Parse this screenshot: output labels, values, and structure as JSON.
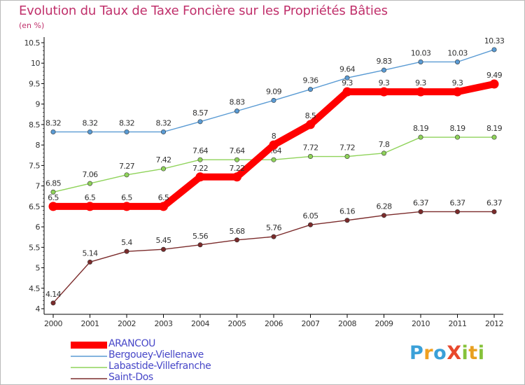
{
  "chart_data": {
    "type": "line",
    "title": "Evolution du Taux de Taxe Foncière sur les Propriétés Bâties",
    "subtitle": "(en %)",
    "xlabel": "",
    "ylabel": "",
    "categories": [
      "2000",
      "2001",
      "2002",
      "2003",
      "2004",
      "2005",
      "2006",
      "2007",
      "2008",
      "2009",
      "2010",
      "2011",
      "2012"
    ],
    "ylim": [
      4,
      10.5
    ],
    "yticks": [
      "4",
      "4.5",
      "5",
      "5.5",
      "6",
      "6.5",
      "7",
      "7.5",
      "8",
      "8.5",
      "9",
      "9.5",
      "10",
      "10.5"
    ],
    "grid": false,
    "legend_position": "bottom-left",
    "series": [
      {
        "name": "Bergouey-Viellenave",
        "color": "#5a9bd4",
        "values": [
          8.32,
          8.32,
          8.32,
          8.32,
          8.57,
          8.83,
          9.09,
          9.36,
          9.64,
          9.83,
          10.03,
          10.03,
          10.33
        ],
        "labels": [
          "8.32",
          "8.32",
          "8.32",
          "8.32",
          "8.57",
          "8.83",
          "9.09",
          "9.36",
          "9.64",
          "9.83",
          "10.03",
          "10.03",
          "10.33"
        ]
      },
      {
        "name": "Labastide-Villefranche",
        "color": "#8fd35a",
        "values": [
          6.85,
          7.06,
          7.27,
          7.42,
          7.64,
          7.64,
          7.64,
          7.72,
          7.72,
          7.8,
          8.19,
          8.19,
          8.19
        ],
        "labels": [
          "6.85",
          "7.06",
          "7.27",
          "7.42",
          "7.64",
          "7.64",
          "7.64",
          "7.72",
          "7.72",
          "7.8",
          "8.19",
          "8.19",
          "8.19"
        ]
      },
      {
        "name": "Saint-Dos",
        "color": "#7b2b2b",
        "values": [
          4.14,
          5.14,
          5.4,
          5.45,
          5.56,
          5.68,
          5.76,
          6.05,
          6.16,
          6.28,
          6.37,
          6.37,
          6.37
        ],
        "labels": [
          "4.14",
          "5.14",
          "5.4",
          "5.45",
          "5.56",
          "5.68",
          "5.76",
          "6.05",
          "6.16",
          "6.28",
          "6.37",
          "6.37",
          "6.37"
        ]
      },
      {
        "name": "ARANCOU",
        "color": "#ff0000",
        "highlight": true,
        "values": [
          6.5,
          6.5,
          6.5,
          6.5,
          7.22,
          7.22,
          8,
          8.5,
          9.3,
          9.3,
          9.3,
          9.3,
          9.49
        ],
        "labels": [
          "6.5",
          "6.5",
          "6.5",
          "6.5",
          "7.22",
          "7.22",
          "8",
          "8.5",
          "9.3",
          "9.3",
          "9.3",
          "9.3",
          "9.49"
        ]
      }
    ],
    "legend": [
      "ARANCOU",
      "Bergouey-Viellenave",
      "Labastide-Villefranche",
      "Saint-Dos"
    ]
  },
  "brand": {
    "text": "ProXiti",
    "letters": [
      "P",
      "r",
      "o",
      "X",
      "i",
      "t",
      "i"
    ],
    "colors": [
      "#3aa0d8",
      "#f0a020",
      "#3aa0d8",
      "#e8482c",
      "#86c23a",
      "#e8a020",
      "#86c23a"
    ]
  }
}
